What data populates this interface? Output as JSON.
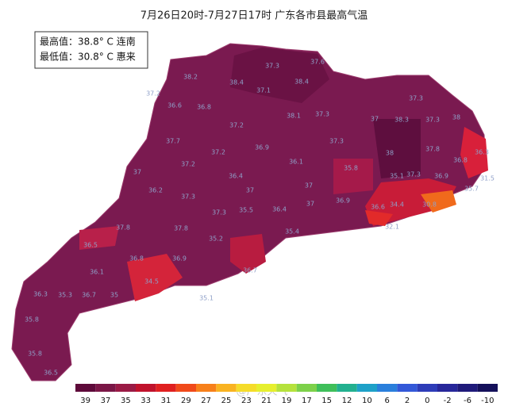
{
  "title": "7月26日20时-7月27日17时 广东各市县最高气温",
  "info": {
    "max": "最高值：38.8° C 连南",
    "min": "最低值：30.8° C 惠来"
  },
  "watermark": "@广东天气",
  "map_labels": [
    38.2,
    38.4,
    38.4,
    37.3,
    37.6,
    37.2,
    36.6,
    36.8,
    37.1,
    37.2,
    38.1,
    37.3,
    37,
    38.3,
    37.3,
    38,
    37.3,
    37.7,
    37.2,
    36.9,
    37.3,
    38,
    37.8,
    36.8,
    36.3,
    31.5,
    35.7,
    37,
    37.2,
    36.4,
    37,
    36.1,
    37,
    35.8,
    35.1,
    37.3,
    36.9,
    36.2,
    37.3,
    37.3,
    36.4,
    37,
    36.9,
    34.4,
    30.8,
    36.6,
    32.1,
    35.4,
    37.8,
    35.5,
    37.8,
    35.2,
    36.5,
    36.9,
    36.8,
    34.5,
    36.7,
    36.1,
    35.1,
    36.3,
    35.3,
    36.7,
    35.8,
    35.8,
    36.5,
    35
  ],
  "colorbar": {
    "ticks": [
      39,
      37,
      35,
      33,
      31,
      29,
      27,
      25,
      23,
      21,
      19,
      17,
      15,
      12,
      10,
      6,
      2,
      0,
      -2,
      -6,
      -10
    ],
    "colors": [
      "#5e0a3a",
      "#7a1646",
      "#9a1a45",
      "#c0122c",
      "#e02020",
      "#f04a1a",
      "#f7801a",
      "#f9b321",
      "#f5dc2a",
      "#e6ef2e",
      "#b5e23c",
      "#7dd14a",
      "#3fbf5a",
      "#22b08f",
      "#1ea1c8",
      "#2a7fdc",
      "#3358d8",
      "#2d3cb8",
      "#27279a",
      "#1f1a7a",
      "#14105a"
    ]
  }
}
